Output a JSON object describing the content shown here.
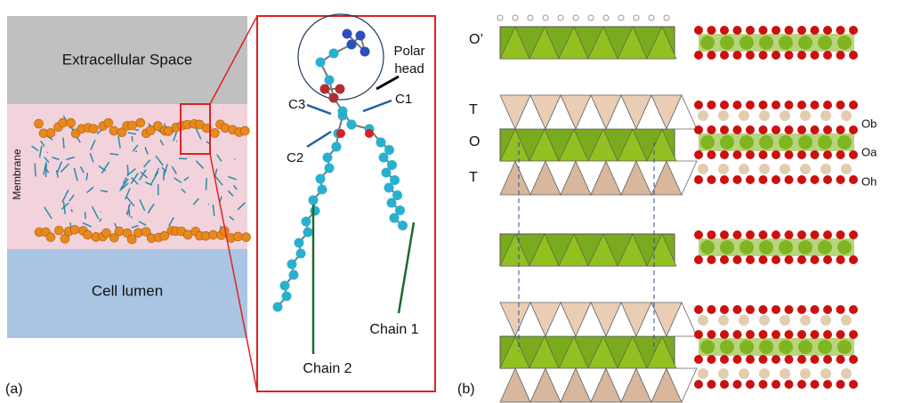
{
  "panel_a": {
    "label": "(a)",
    "regions": {
      "extracellular": "Extracellular Space",
      "membrane": "Membrane",
      "lumen": "Cell lumen"
    },
    "inset": {
      "polar_head": [
        "Polar",
        "head"
      ],
      "carbons": [
        "C3",
        "C1",
        "C2"
      ],
      "chains": [
        "Chain 2",
        "Chain 1"
      ]
    }
  },
  "panel_b": {
    "label": "(b)",
    "layer_labels": [
      "O’",
      "T",
      "O",
      "T"
    ],
    "oxygen_labels": [
      "Ob",
      "Oa",
      "Oh"
    ]
  }
}
